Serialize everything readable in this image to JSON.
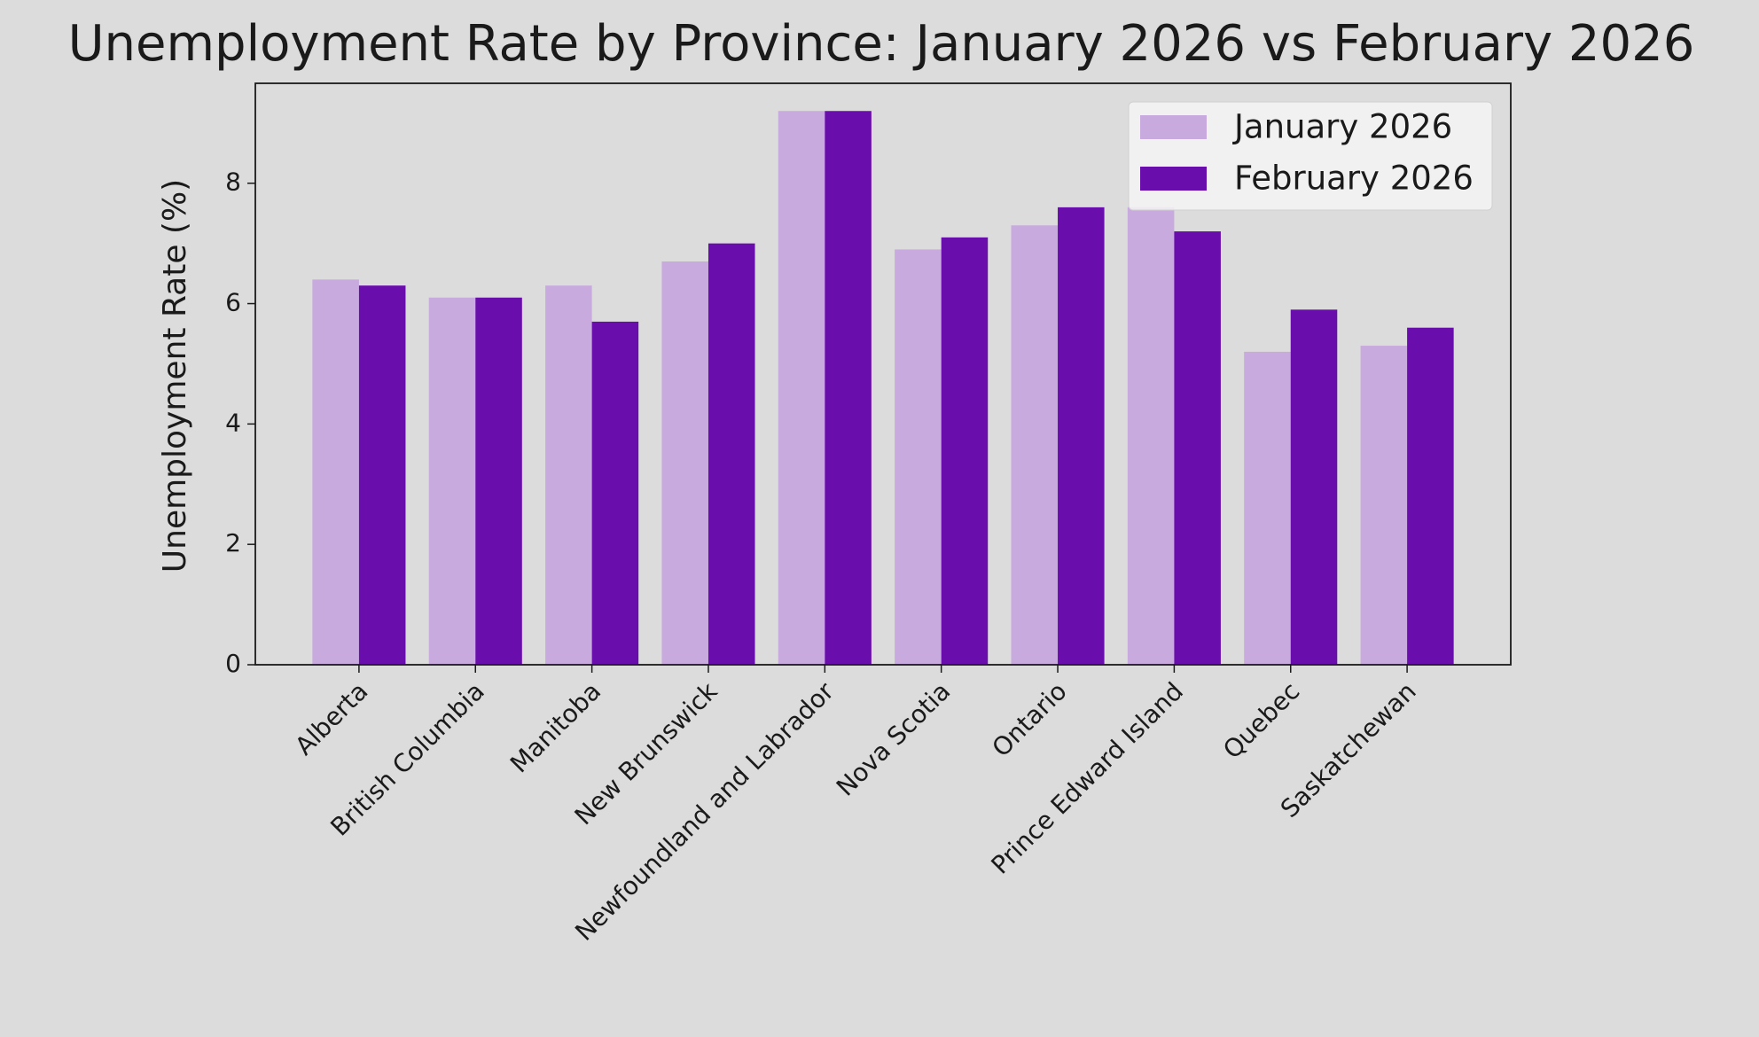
{
  "chart_data": {
    "type": "bar",
    "title": "Unemployment Rate by Province: January 2026 vs February 2026",
    "y_label": "Unemployment Rate (%)",
    "categories": [
      "Alberta",
      "British Columbia",
      "Manitoba",
      "New Brunswick",
      "Newfoundland and Labrador",
      "Nova Scotia",
      "Ontario",
      "Prince Edward Island",
      "Quebec",
      "Saskatchewan"
    ],
    "series": [
      {
        "name": "January 2026",
        "color": "#c8aade",
        "values": [
          6.4,
          6.1,
          6.3,
          6.7,
          9.2,
          6.9,
          7.3,
          7.6,
          5.2,
          5.3
        ]
      },
      {
        "name": "February 2026",
        "color": "#6a0dad",
        "values": [
          6.3,
          6.1,
          5.7,
          7.0,
          9.2,
          7.1,
          7.6,
          7.2,
          5.9,
          5.6
        ]
      }
    ],
    "ylim": [
      0,
      9.66
    ],
    "yticks": [
      0,
      2,
      4,
      6,
      8
    ],
    "grid": false,
    "legend": "upper right"
  }
}
